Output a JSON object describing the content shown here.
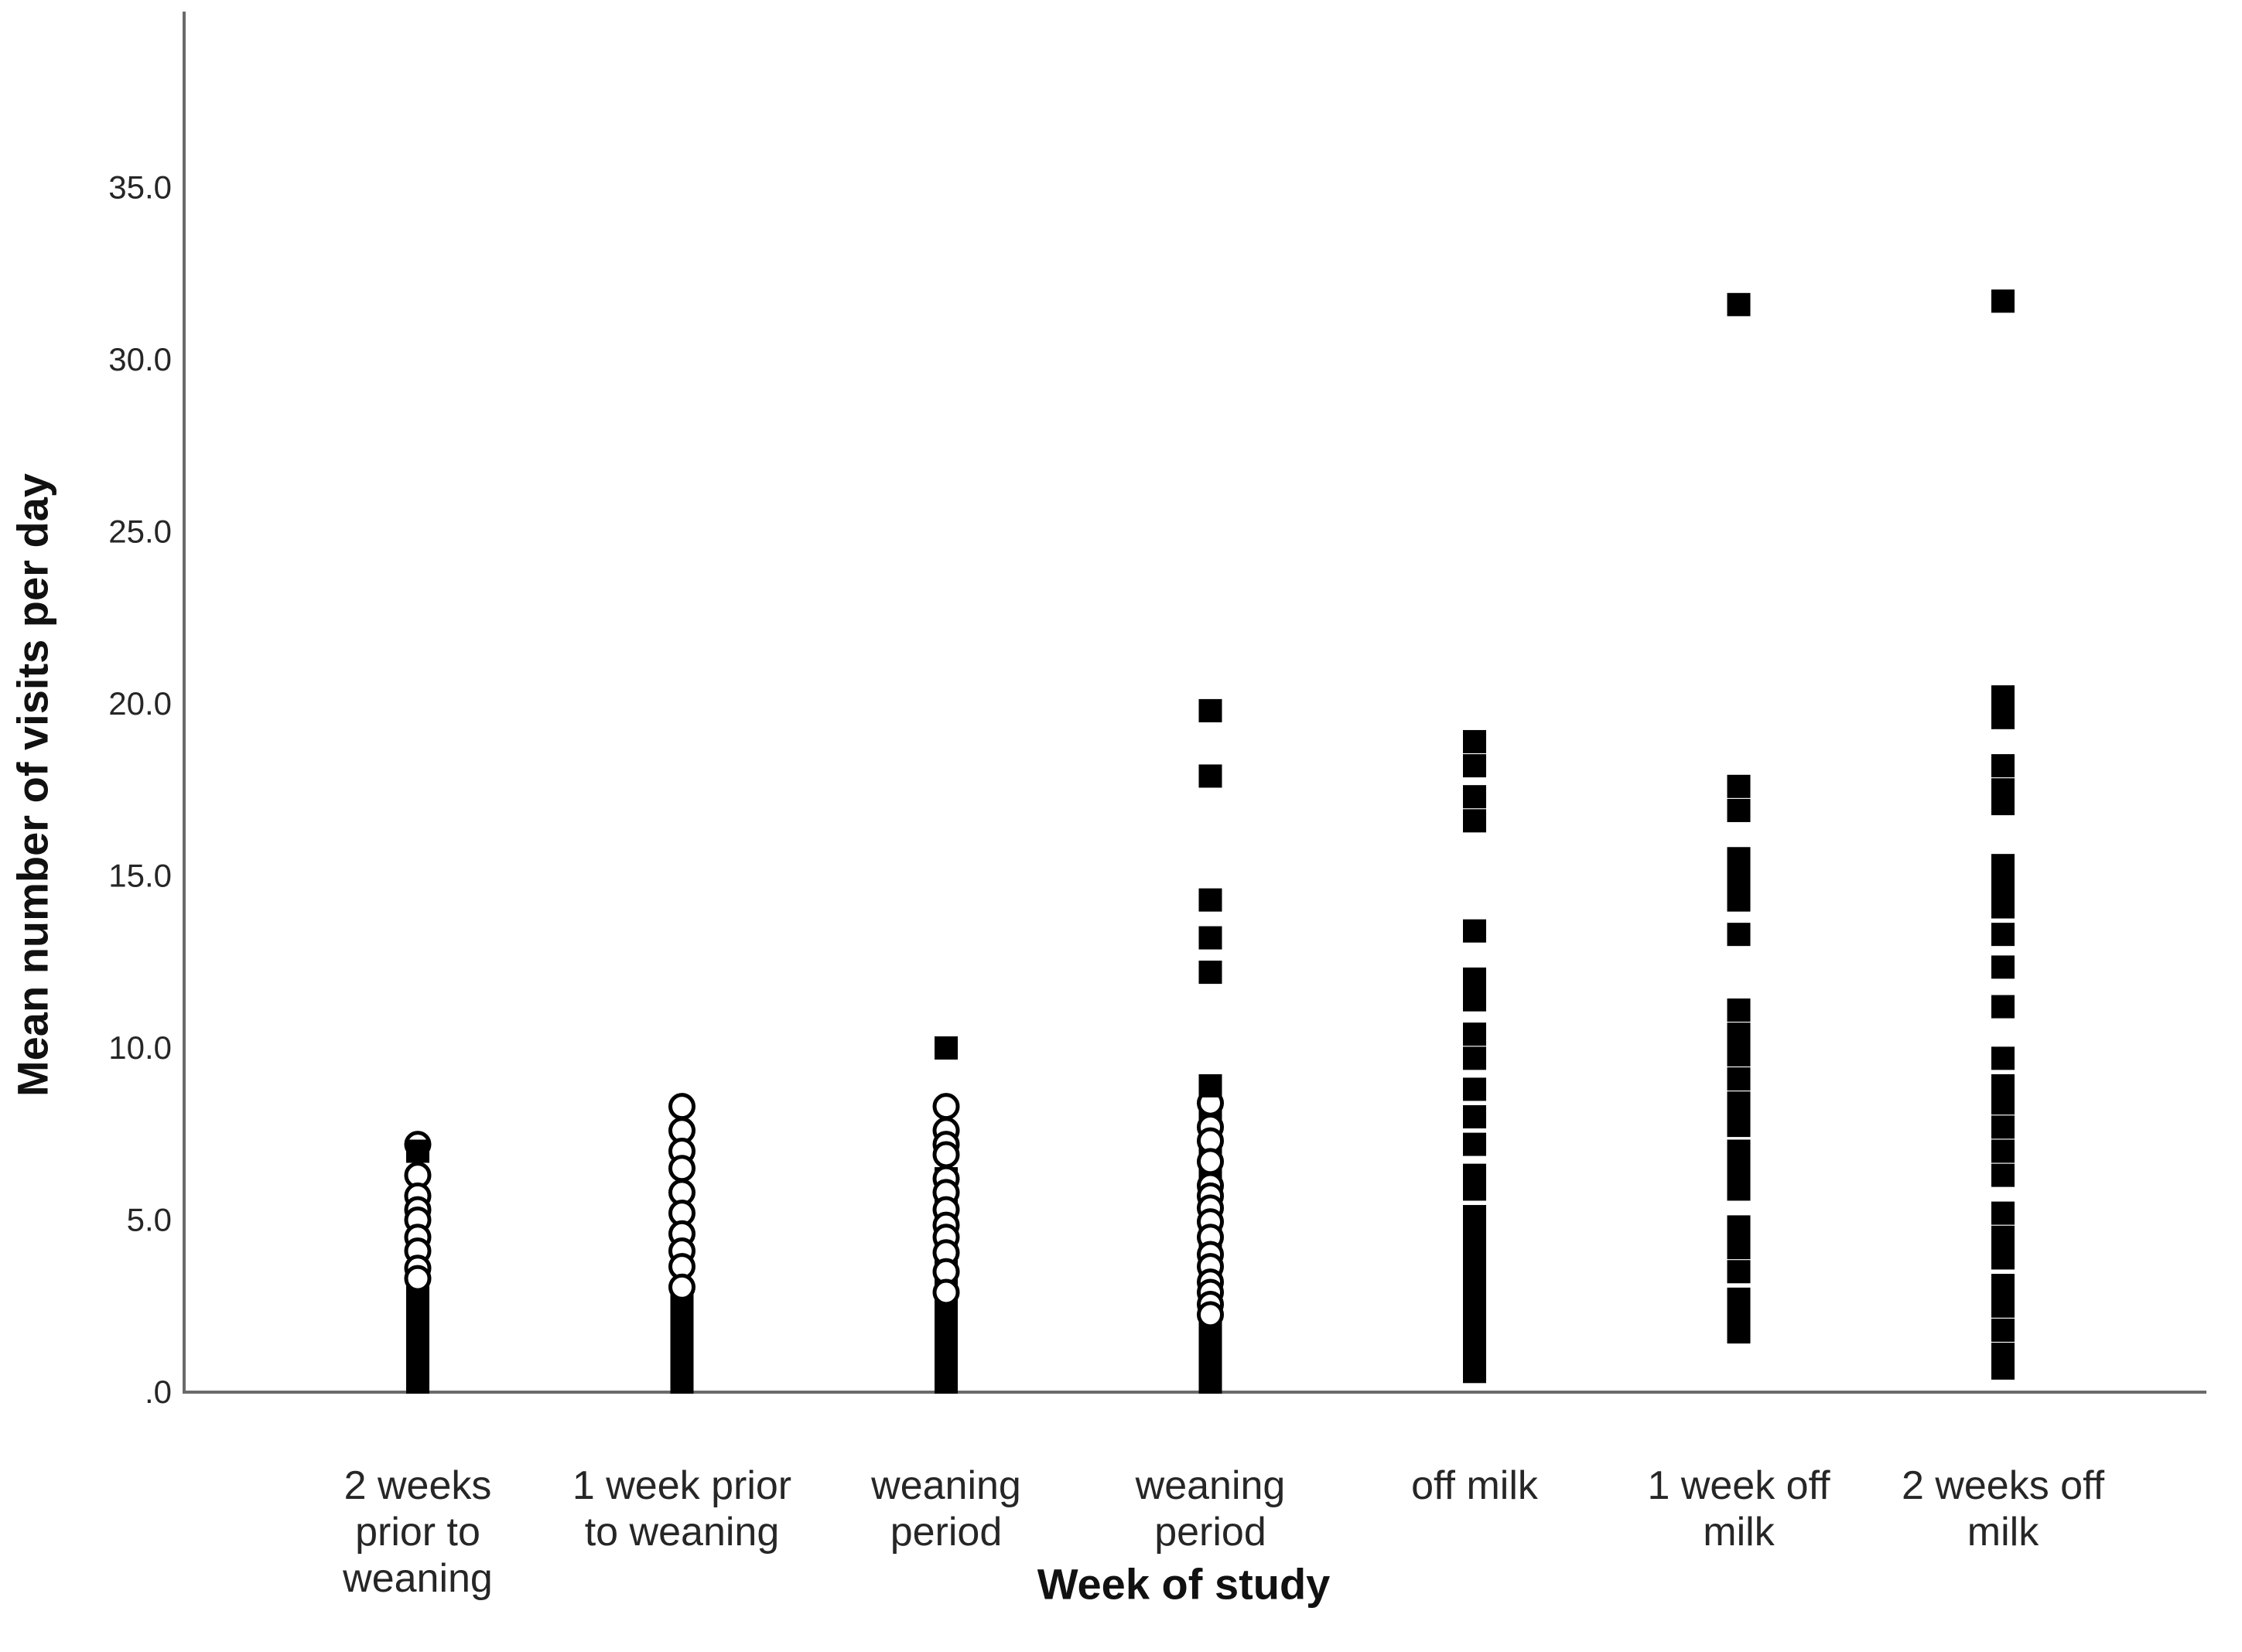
{
  "chart_data": {
    "type": "scatter",
    "title": "",
    "xlabel": "Week of study",
    "ylabel": "Mean number of visits per day",
    "ylim": [
      0,
      40
    ],
    "grid": false,
    "legend": "none",
    "yticks": [
      {
        "label": "35.0",
        "value": 35
      },
      {
        "label": "30.0",
        "value": 30
      },
      {
        "label": "25.0",
        "value": 25
      },
      {
        "label": "20.0",
        "value": 20
      },
      {
        "label": "15.0",
        "value": 15
      },
      {
        "label": "10.0",
        "value": 10
      },
      {
        "label": "5.0",
        "value": 5
      },
      {
        "label": ".0",
        "value": 0
      }
    ],
    "marker_styles": {
      "circle": "open circle (white fill, black outline)",
      "square": "filled black square",
      "bar": "dense run of overlapping markers rendered as solid black column"
    },
    "colors": {
      "marker": "#000000",
      "axis": "#6a6a6a",
      "tick_text": "#262626"
    },
    "categories": [
      {
        "label": "2 weeks prior to weaning",
        "label_lines": [
          "2 weeks",
          "prior to",
          "weaning"
        ],
        "circles": [
          7.2,
          6.3,
          5.7,
          5.3,
          5.0,
          4.5,
          4.1,
          3.6,
          3.3
        ],
        "squares": [
          7.0
        ],
        "dense_run": [
          0.15,
          3.0
        ]
      },
      {
        "label": "1 week prior to weaning",
        "label_lines": [
          "1 week prior",
          "to weaning"
        ],
        "circles": [
          8.3,
          7.6,
          7.0,
          6.5,
          5.8,
          5.2,
          4.6,
          4.1,
          3.65,
          3.05
        ],
        "squares": [],
        "dense_run": [
          0.15,
          2.6
        ]
      },
      {
        "label": "weaning period",
        "label_lines": [
          "weaning",
          "period"
        ],
        "circles": [
          8.3,
          7.6,
          7.2,
          6.9,
          6.2,
          5.8,
          5.3,
          4.85,
          4.5,
          4.05,
          3.5,
          2.9
        ],
        "squares": [
          10.0
        ],
        "dense_run": [
          0.15,
          6.2
        ]
      },
      {
        "label": "weaning period",
        "label_lines": [
          "weaning",
          "period"
        ],
        "circles": [
          8.4,
          7.7,
          7.3,
          6.7,
          6.0,
          5.7,
          5.35,
          4.95,
          4.5,
          4.0,
          3.65,
          3.2,
          2.9,
          2.55,
          2.25
        ],
        "squares": [
          19.8,
          17.9,
          14.3,
          13.2,
          12.2,
          8.9
        ],
        "dense_run": [
          0.15,
          8.5
        ]
      },
      {
        "label": "off milk",
        "label_lines": [
          "off milk"
        ],
        "circles": [],
        "squares": [
          18.9,
          18.2,
          17.3,
          16.6,
          13.4,
          12.0,
          11.4,
          10.4,
          9.7,
          8.8,
          8.0,
          7.2,
          6.3,
          5.9,
          5.1,
          4.9,
          4.6,
          4.3,
          4.0,
          3.6,
          3.3,
          3.0,
          2.7,
          2.4,
          2.1,
          1.8,
          1.4,
          1.1,
          0.8,
          0.6
        ],
        "dense_run": null
      },
      {
        "label": "1 week off milk",
        "label_lines": [
          "1 week off",
          "milk"
        ],
        "circles": [],
        "squares": [
          31.6,
          17.6,
          16.9,
          15.5,
          14.9,
          14.3,
          13.3,
          11.1,
          10.4,
          9.8,
          9.1,
          8.4,
          7.75,
          7.0,
          6.4,
          5.9,
          4.8,
          4.2,
          3.5,
          2.7,
          2.1,
          1.75
        ],
        "dense_run": null
      },
      {
        "label": "2 weeks off milk",
        "label_lines": [
          "2 weeks off",
          "milk"
        ],
        "circles": [],
        "squares": [
          31.7,
          20.2,
          19.6,
          18.2,
          17.5,
          17.1,
          15.3,
          14.7,
          14.1,
          13.3,
          12.35,
          11.2,
          9.7,
          8.9,
          8.4,
          7.7,
          7.0,
          6.3,
          5.2,
          4.5,
          3.9,
          3.1,
          2.5,
          1.8,
          1.1,
          0.7
        ],
        "dense_run": null
      }
    ]
  }
}
